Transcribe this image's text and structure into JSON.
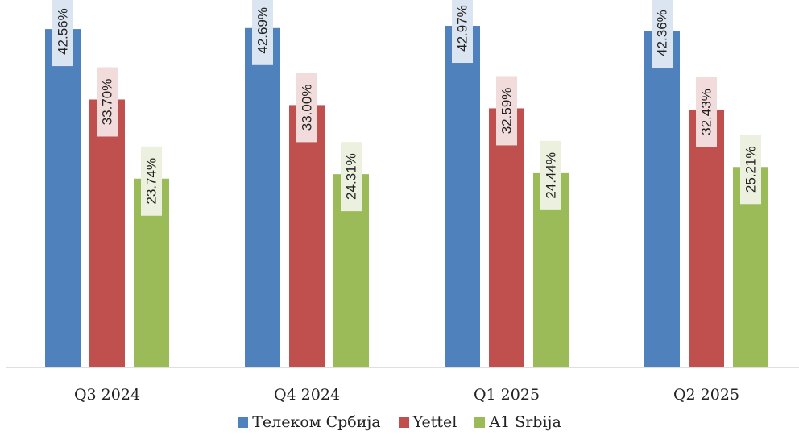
{
  "chart_data": {
    "type": "bar",
    "categories": [
      "Q3 2024",
      "Q4 2024",
      "Q1 2025",
      "Q2 2025"
    ],
    "series": [
      {
        "name": "Телеком Србија",
        "color": "#4f81bd",
        "label_bg": "#dbe5f1",
        "values": [
          42.56,
          42.69,
          42.97,
          42.36
        ],
        "labels": [
          "42.56%",
          "42.69%",
          "42.97%",
          "42.36%"
        ]
      },
      {
        "name": "Yettel",
        "color": "#c0504d",
        "label_bg": "#f2dcdb",
        "values": [
          33.7,
          33.0,
          32.59,
          32.43
        ],
        "labels": [
          "33.70%",
          "33.00%",
          "32.59%",
          "32.43%"
        ]
      },
      {
        "name": "A1 Srbija",
        "color": "#9bbb59",
        "label_bg": "#ebf1de",
        "values": [
          23.74,
          24.31,
          24.44,
          25.21
        ],
        "labels": [
          "23.74%",
          "24.31%",
          "24.44%",
          "25.21%"
        ]
      }
    ],
    "ylim": [
      0,
      45
    ],
    "grid": false,
    "legend": "bottom"
  }
}
